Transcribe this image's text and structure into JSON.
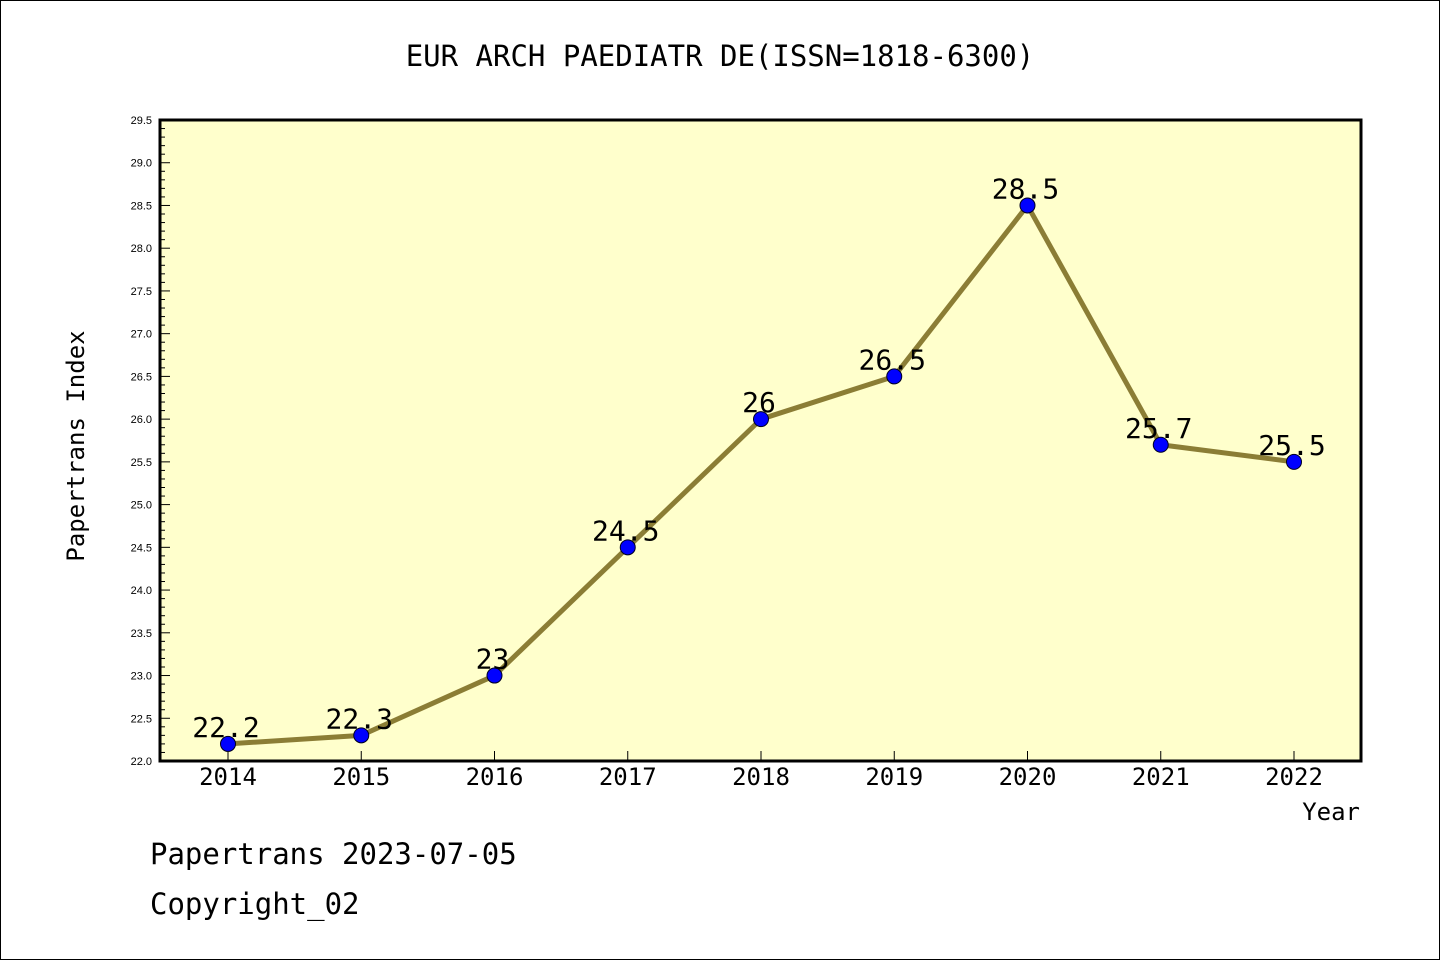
{
  "chart_data": {
    "type": "line",
    "title": "EUR ARCH PAEDIATR DE(ISSN=1818-6300)",
    "xlabel": "Year",
    "ylabel": "Papertrans Index",
    "x": [
      "2014",
      "2015",
      "2016",
      "2017",
      "2018",
      "2019",
      "2020",
      "2021",
      "2022"
    ],
    "series": [
      {
        "values": [
          22.2,
          22.3,
          23,
          24.5,
          26,
          26.5,
          28.5,
          25.7,
          25.5
        ],
        "labels": [
          "22.2",
          "22.3",
          "23",
          "24.5",
          "26",
          "26.5",
          "28.5",
          "25.7",
          "25.5"
        ]
      }
    ],
    "ylim": [
      22.0,
      29.5
    ],
    "yticks": [
      "22.0",
      "22.5",
      "23.0",
      "23.5",
      "24.0",
      "24.5",
      "25.0",
      "25.5",
      "26.0",
      "26.5",
      "27.0",
      "27.5",
      "28.0",
      "28.5",
      "29.0",
      "29.5"
    ],
    "grid": false,
    "colors": {
      "plot_background": "#ffffcc",
      "line": "#8b7d35",
      "marker": "#0000ff"
    }
  },
  "footer": {
    "line1": "Papertrans 2023-07-05",
    "line2": "Copyright_02"
  }
}
